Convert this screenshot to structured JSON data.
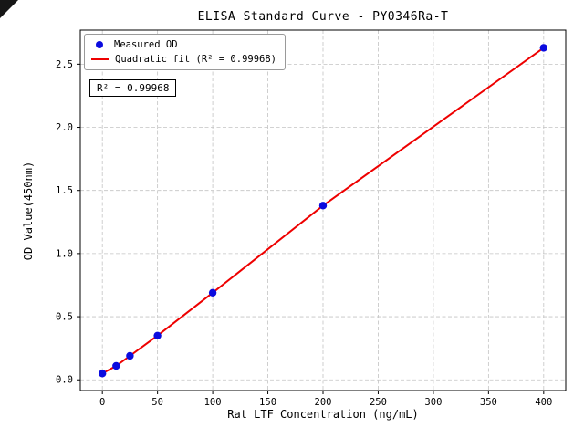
{
  "chart_data": {
    "type": "scatter",
    "title": "ELISA Standard Curve - PY0346Ra-T",
    "xlabel": "Rat LTF Concentration (ng/mL)",
    "ylabel": "OD Value(450nm)",
    "x": [
      0,
      12.5,
      25,
      50,
      100,
      200,
      400
    ],
    "y": [
      0.05,
      0.11,
      0.19,
      0.35,
      0.69,
      1.38,
      2.63
    ],
    "series": [
      {
        "name": "Measured OD",
        "type": "scatter",
        "color": "#0b0bdf"
      },
      {
        "name": "Quadratic fit (R² = 0.99968)",
        "type": "line",
        "color": "#ee0000"
      }
    ],
    "annotation": "R² = 0.99968",
    "r_squared": 0.99968,
    "xlim": [
      -20,
      420
    ],
    "ylim": [
      -0.085,
      2.77
    ],
    "xticks": [
      0,
      50,
      100,
      150,
      200,
      250,
      300,
      350,
      400
    ],
    "xtick_labels": [
      "0",
      "50",
      "100",
      "150",
      "200",
      "250",
      "300",
      "350",
      "400"
    ],
    "yticks": [
      0,
      0.5,
      1.0,
      1.5,
      2.0,
      2.5
    ],
    "ytick_labels": [
      "0.0",
      "0.5",
      "1.0",
      "1.5",
      "2.0",
      "2.5"
    ],
    "grid": true,
    "grid_style": "dashed",
    "legend_position": "upper-left"
  }
}
